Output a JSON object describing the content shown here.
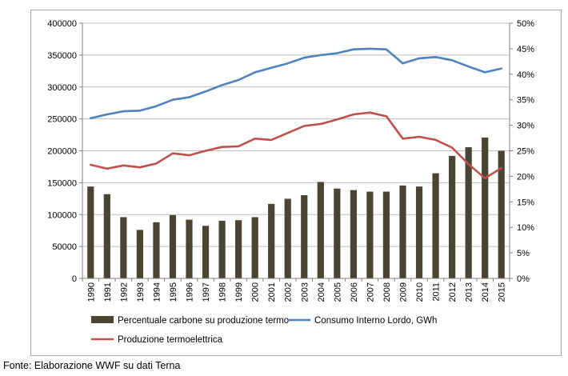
{
  "source_note": "Fonte: Elaborazione WWF su dati Terna",
  "colors": {
    "bars": "#4a4432",
    "consumo_line": "#4f81bd",
    "produzione_line": "#c0504d",
    "grid": "#bfbfbf",
    "axis": "#808080"
  },
  "chart_data": {
    "type": "bar+line",
    "categories": [
      "1990",
      "1991",
      "1992",
      "1993",
      "1994",
      "1995",
      "1996",
      "1997",
      "1998",
      "1999",
      "2000",
      "2001",
      "2002",
      "2003",
      "2004",
      "2005",
      "2006",
      "2007",
      "2008",
      "2009",
      "2010",
      "2011",
      "2012",
      "2013",
      "2014",
      "2015"
    ],
    "left_axis": {
      "ylim": [
        0,
        400000
      ],
      "ticks": [
        "0",
        "50000",
        "100000",
        "150000",
        "200000",
        "250000",
        "300000",
        "350000",
        "400000"
      ]
    },
    "right_axis": {
      "ylim": [
        0,
        50
      ],
      "ticks": [
        "0%",
        "5%",
        "10%",
        "15%",
        "20%",
        "25%",
        "30%",
        "35%",
        "40%",
        "45%",
        "50%"
      ]
    },
    "grid": true,
    "legend_position": "bottom",
    "series": [
      {
        "name": "Percentuale carbone su produzione termo",
        "type": "bar",
        "axis": "right",
        "values": [
          18.0,
          16.5,
          12.0,
          9.5,
          11.0,
          12.4,
          11.5,
          10.3,
          11.3,
          11.4,
          12.0,
          14.6,
          15.6,
          16.3,
          18.9,
          17.6,
          17.3,
          17.0,
          17.0,
          18.2,
          18.0,
          20.6,
          24.0,
          25.7,
          27.6,
          25.0
        ]
      },
      {
        "name": "Consumo Interno Lordo, GWh",
        "type": "line",
        "axis": "left",
        "values": [
          251000,
          257000,
          262000,
          263000,
          270000,
          280000,
          284000,
          293000,
          303000,
          311000,
          323000,
          330000,
          337000,
          346000,
          350000,
          353000,
          359000,
          360000,
          359000,
          337000,
          345000,
          347000,
          342000,
          332000,
          323000,
          329000
        ]
      },
      {
        "name": "Produzione termoelettrica",
        "type": "line",
        "axis": "left",
        "values": [
          178000,
          172000,
          177000,
          174000,
          180000,
          196000,
          193000,
          200000,
          206000,
          207000,
          219000,
          217000,
          228000,
          239000,
          242000,
          249000,
          257000,
          260000,
          254000,
          219000,
          222000,
          217000,
          205000,
          179000,
          157000,
          173000
        ]
      }
    ]
  }
}
